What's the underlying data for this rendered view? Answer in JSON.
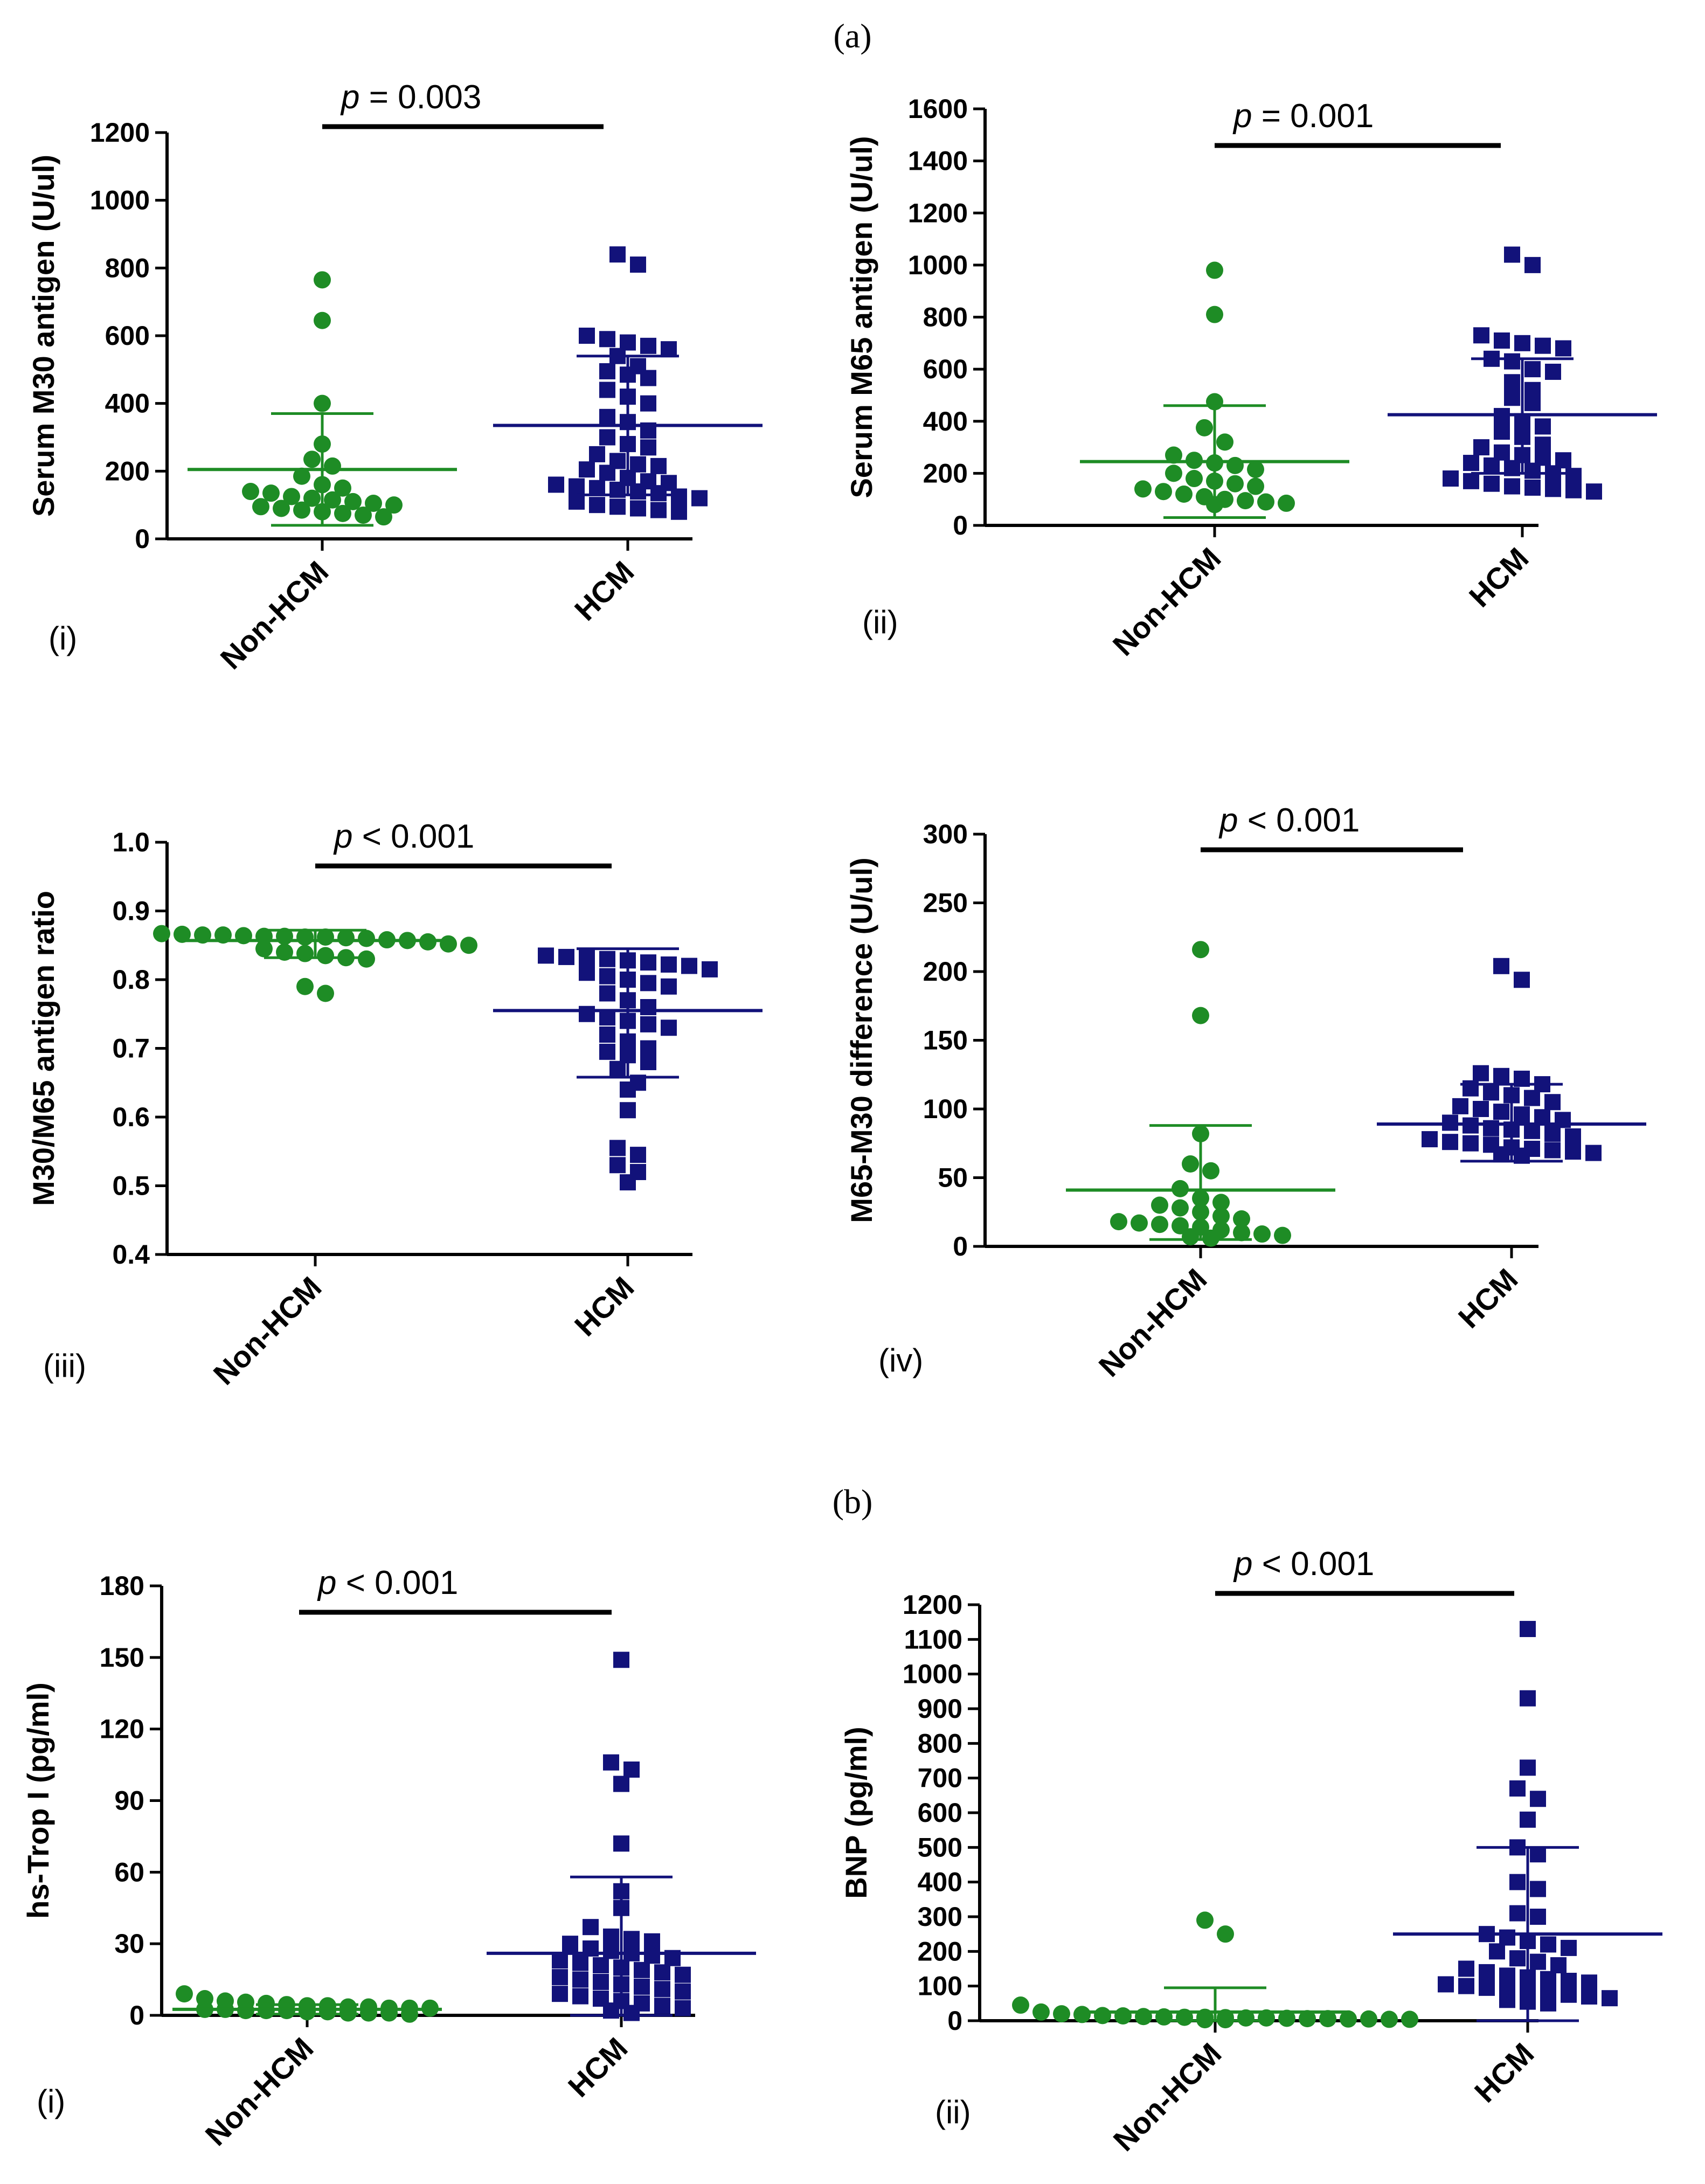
{
  "figure": {
    "section_a": "(a)",
    "section_b": "(b)"
  },
  "colors": {
    "non_hcm": "#1e8c25",
    "hcm": "#12127a",
    "axis": "#000000"
  },
  "chart_data": [
    {
      "id": "a-i",
      "type": "scatter",
      "panel_label": "(i)",
      "categories": [
        "Non-HCM",
        "HCM"
      ],
      "ylabel": "Serum M30 antigen (U/ul)",
      "ylim": [
        0,
        1200
      ],
      "yticks": [
        0,
        200,
        400,
        600,
        800,
        1000,
        1200
      ],
      "p_value": "= 0.003",
      "series": [
        {
          "name": "Non-HCM",
          "marker": "circle",
          "mean": 205,
          "sd_upper": 370,
          "sd_lower": 40,
          "values": [
            765,
            645,
            400,
            280,
            235,
            215,
            185,
            160,
            150,
            140,
            135,
            125,
            120,
            115,
            110,
            105,
            100,
            95,
            90,
            85,
            80,
            75,
            70,
            65
          ]
        },
        {
          "name": "HCM",
          "marker": "square",
          "mean": 335,
          "sd_upper": 540,
          "sd_lower": 130,
          "values": [
            840,
            810,
            600,
            590,
            580,
            570,
            560,
            540,
            510,
            495,
            485,
            475,
            440,
            420,
            400,
            360,
            345,
            320,
            300,
            280,
            270,
            250,
            230,
            220,
            215,
            205,
            195,
            180,
            170,
            165,
            160,
            155,
            150,
            145,
            140,
            135,
            125,
            120,
            110,
            100,
            95,
            90,
            85,
            80
          ]
        }
      ]
    },
    {
      "id": "a-ii",
      "type": "scatter",
      "panel_label": "(ii)",
      "categories": [
        "Non-HCM",
        "HCM"
      ],
      "ylabel": "Serum M65 antigen (U/ul)",
      "ylim": [
        0,
        1600
      ],
      "yticks": [
        0,
        200,
        400,
        600,
        800,
        1000,
        1200,
        1400,
        1600
      ],
      "p_value": "= 0.001",
      "series": [
        {
          "name": "Non-HCM",
          "marker": "circle",
          "mean": 245,
          "sd_upper": 460,
          "sd_lower": 30,
          "values": [
            980,
            810,
            475,
            375,
            320,
            270,
            250,
            240,
            230,
            215,
            200,
            180,
            170,
            160,
            150,
            140,
            130,
            120,
            110,
            100,
            95,
            90,
            85,
            80
          ]
        },
        {
          "name": "HCM",
          "marker": "square",
          "mean": 425,
          "sd_upper": 640,
          "sd_lower": 200,
          "values": [
            1040,
            1000,
            730,
            710,
            700,
            690,
            680,
            640,
            630,
            600,
            590,
            550,
            520,
            490,
            470,
            420,
            400,
            380,
            360,
            340,
            310,
            300,
            280,
            270,
            260,
            250,
            240,
            230,
            220,
            210,
            200,
            190,
            180,
            170,
            160,
            150,
            145,
            140,
            135,
            130
          ]
        }
      ]
    },
    {
      "id": "a-iii",
      "type": "scatter",
      "panel_label": "(iii)",
      "categories": [
        "Non-HCM",
        "HCM"
      ],
      "ylabel": "M30/M65 antigen ratio",
      "ylim": [
        0.4,
        1.0
      ],
      "yticks": [
        0.4,
        0.5,
        0.6,
        0.7,
        0.8,
        0.9,
        1.0
      ],
      "yticklabels": [
        "0.4",
        "0.5",
        "0.6",
        "0.7",
        "0.8",
        "0.9",
        "1.0"
      ],
      "p_value": "< 0.001",
      "series": [
        {
          "name": "Non-HCM",
          "marker": "circle",
          "mean": 0.857,
          "sd_upper": 0.872,
          "sd_lower": 0.832,
          "values": [
            0.867,
            0.866,
            0.865,
            0.865,
            0.864,
            0.863,
            0.863,
            0.862,
            0.862,
            0.861,
            0.86,
            0.858,
            0.857,
            0.855,
            0.852,
            0.85,
            0.845,
            0.84,
            0.838,
            0.835,
            0.832,
            0.83,
            0.79,
            0.78
          ]
        },
        {
          "name": "HCM",
          "marker": "square",
          "mean": 0.755,
          "sd_upper": 0.845,
          "sd_lower": 0.658,
          "values": [
            0.835,
            0.833,
            0.832,
            0.83,
            0.828,
            0.825,
            0.822,
            0.82,
            0.815,
            0.81,
            0.805,
            0.8,
            0.795,
            0.79,
            0.78,
            0.77,
            0.76,
            0.75,
            0.745,
            0.74,
            0.735,
            0.73,
            0.72,
            0.71,
            0.7,
            0.695,
            0.69,
            0.68,
            0.67,
            0.65,
            0.64,
            0.61,
            0.555,
            0.545,
            0.53,
            0.52,
            0.505
          ]
        }
      ]
    },
    {
      "id": "a-iv",
      "type": "scatter",
      "panel_label": "(iv)",
      "categories": [
        "Non-HCM",
        "HCM"
      ],
      "ylabel": "M65-M30  difference (U/ul)",
      "ylim": [
        0,
        300
      ],
      "yticks": [
        0,
        50,
        100,
        150,
        200,
        250,
        300
      ],
      "p_value": "< 0.001",
      "series": [
        {
          "name": "Non-HCM",
          "marker": "circle",
          "mean": 41,
          "sd_upper": 88,
          "sd_lower": 5,
          "values": [
            216,
            168,
            82,
            60,
            55,
            42,
            35,
            32,
            30,
            28,
            25,
            22,
            20,
            18,
            17,
            16,
            15,
            14,
            12,
            10,
            9,
            8,
            7,
            6
          ]
        },
        {
          "name": "HCM",
          "marker": "square",
          "mean": 89,
          "sd_upper": 118,
          "sd_lower": 62,
          "values": [
            204,
            194,
            126,
            124,
            122,
            118,
            115,
            112,
            110,
            108,
            105,
            102,
            100,
            98,
            96,
            94,
            92,
            90,
            88,
            86,
            85,
            84,
            82,
            80,
            78,
            76,
            75,
            74,
            72,
            71,
            70,
            69,
            68,
            67,
            66
          ]
        }
      ]
    },
    {
      "id": "b-i",
      "type": "scatter",
      "panel_label": "(i)",
      "categories": [
        "Non-HCM",
        "HCM"
      ],
      "ylabel": "hs-Trop I (pg/ml)",
      "ylim": [
        0,
        180
      ],
      "yticks": [
        0,
        30,
        60,
        90,
        120,
        150,
        180
      ],
      "p_value": "< 0.001",
      "series": [
        {
          "name": "Non-HCM",
          "marker": "circle",
          "mean": 2.5,
          "sd_upper": 4.5,
          "sd_lower": 0.5,
          "values": [
            9,
            7,
            6,
            5.5,
            5,
            4.5,
            4,
            4,
            3.5,
            3.5,
            3,
            3,
            3,
            2.5,
            2.5,
            2,
            2,
            2,
            1.5,
            1.5,
            1,
            1,
            1,
            0.5
          ]
        },
        {
          "name": "HCM",
          "marker": "square",
          "mean": 26,
          "sd_upper": 58,
          "sd_lower": 0,
          "values": [
            149,
            106,
            103,
            97,
            72,
            52,
            45,
            37,
            33,
            32,
            31,
            30,
            28,
            27,
            26,
            25,
            24,
            23,
            22,
            21,
            20,
            19,
            18,
            17,
            16,
            15,
            14,
            13,
            12,
            11,
            10,
            9,
            8,
            7,
            6,
            5,
            4,
            3,
            2,
            1
          ]
        }
      ]
    },
    {
      "id": "b-ii",
      "type": "scatter",
      "panel_label": "(ii)",
      "categories": [
        "Non-HCM",
        "HCM"
      ],
      "ylabel": "BNP (pg/ml)",
      "ylim": [
        0,
        1200
      ],
      "yticks": [
        0,
        100,
        200,
        300,
        400,
        500,
        600,
        700,
        800,
        900,
        1000,
        1100,
        1200
      ],
      "p_value": "< 0.001",
      "series": [
        {
          "name": "Non-HCM",
          "marker": "circle",
          "mean": 25,
          "sd_upper": 95,
          "sd_lower": 0,
          "values": [
            290,
            250,
            45,
            25,
            20,
            18,
            15,
            14,
            12,
            11,
            10,
            10,
            9,
            8,
            8,
            7,
            6,
            6,
            5,
            5,
            4,
            4,
            3,
            3
          ]
        },
        {
          "name": "HCM",
          "marker": "square",
          "mean": 250,
          "sd_upper": 500,
          "sd_lower": 0,
          "values": [
            1130,
            930,
            730,
            670,
            640,
            580,
            500,
            480,
            400,
            380,
            310,
            300,
            250,
            240,
            230,
            220,
            210,
            200,
            180,
            170,
            160,
            150,
            140,
            130,
            125,
            120,
            115,
            110,
            105,
            100,
            95,
            90,
            85,
            80,
            75,
            70,
            65,
            60,
            55,
            50
          ]
        }
      ]
    }
  ]
}
